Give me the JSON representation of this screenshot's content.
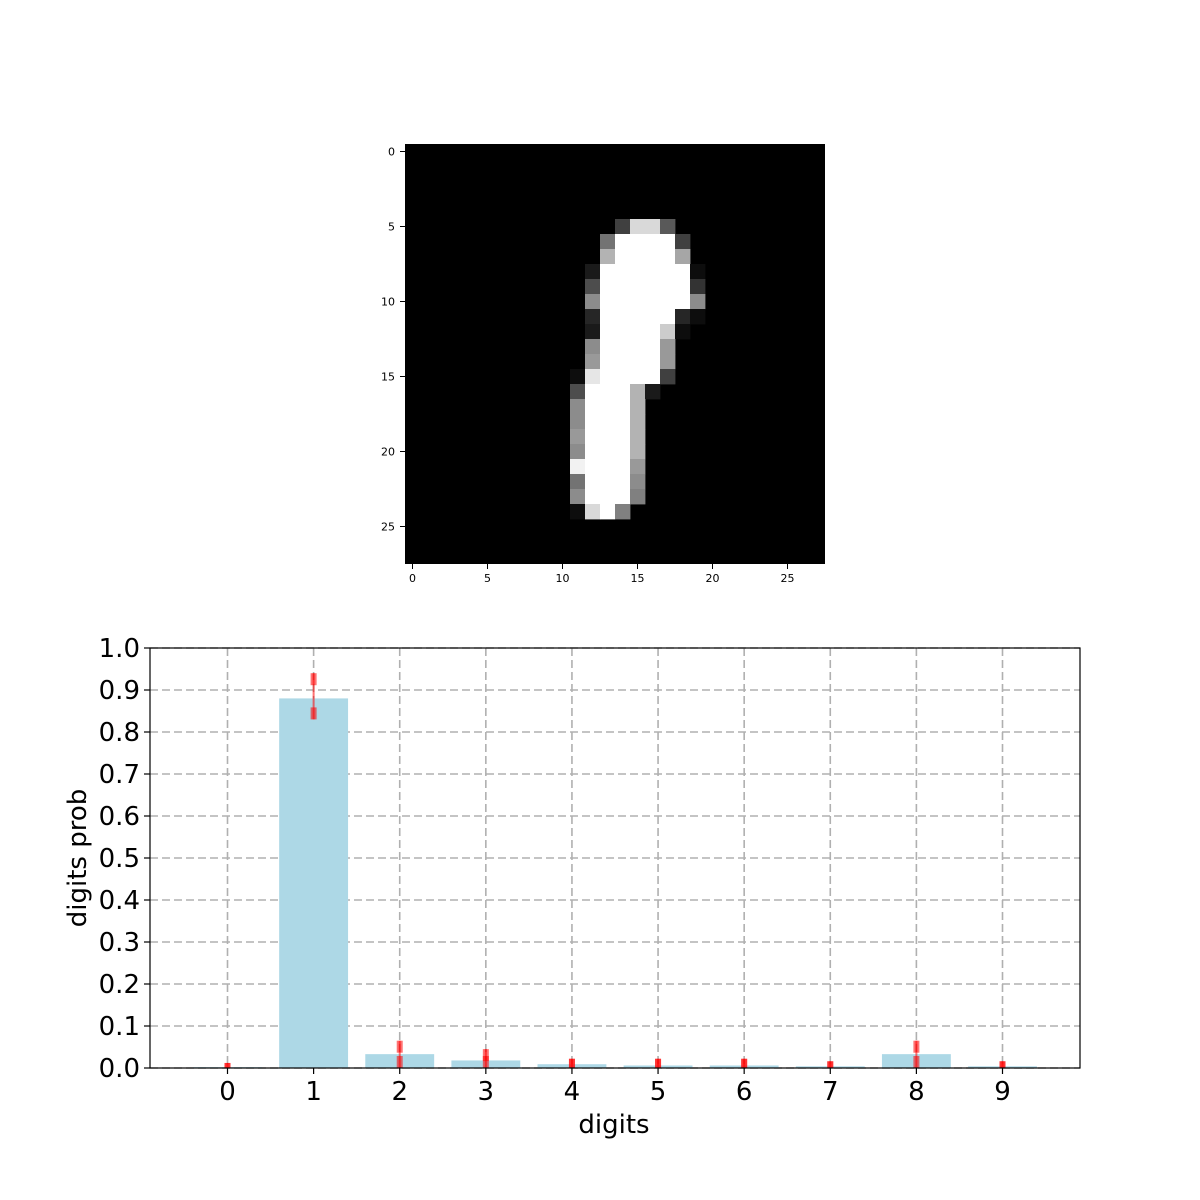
{
  "image_panel": {
    "type": "heatmap",
    "colormap": "gray",
    "size": [
      28,
      28
    ],
    "x_ticks": [
      "0",
      "5",
      "10",
      "15",
      "20",
      "25"
    ],
    "y_ticks": [
      "0",
      "5",
      "10",
      "15",
      "20",
      "25"
    ],
    "pixels": [
      [
        5,
        14,
        0.25
      ],
      [
        5,
        15,
        0.85
      ],
      [
        5,
        16,
        0.85
      ],
      [
        5,
        17,
        0.35
      ],
      [
        6,
        13,
        0.45
      ],
      [
        6,
        14,
        1.0
      ],
      [
        6,
        15,
        1.0
      ],
      [
        6,
        16,
        1.0
      ],
      [
        6,
        17,
        1.0
      ],
      [
        6,
        18,
        0.25
      ],
      [
        7,
        13,
        0.7
      ],
      [
        7,
        14,
        1.0
      ],
      [
        7,
        15,
        1.0
      ],
      [
        7,
        16,
        1.0
      ],
      [
        7,
        17,
        1.0
      ],
      [
        7,
        18,
        0.65
      ],
      [
        8,
        12,
        0.1
      ],
      [
        8,
        13,
        1.0
      ],
      [
        8,
        14,
        1.0
      ],
      [
        8,
        15,
        1.0
      ],
      [
        8,
        16,
        1.0
      ],
      [
        8,
        17,
        1.0
      ],
      [
        8,
        18,
        1.0
      ],
      [
        8,
        19,
        0.05
      ],
      [
        9,
        12,
        0.3
      ],
      [
        9,
        13,
        1.0
      ],
      [
        9,
        14,
        1.0
      ],
      [
        9,
        15,
        1.0
      ],
      [
        9,
        16,
        1.0
      ],
      [
        9,
        17,
        1.0
      ],
      [
        9,
        18,
        1.0
      ],
      [
        9,
        19,
        0.2
      ],
      [
        10,
        12,
        0.55
      ],
      [
        10,
        13,
        1.0
      ],
      [
        10,
        14,
        1.0
      ],
      [
        10,
        15,
        1.0
      ],
      [
        10,
        16,
        1.0
      ],
      [
        10,
        17,
        1.0
      ],
      [
        10,
        18,
        1.0
      ],
      [
        10,
        19,
        0.55
      ],
      [
        11,
        12,
        0.15
      ],
      [
        11,
        13,
        1.0
      ],
      [
        11,
        14,
        1.0
      ],
      [
        11,
        15,
        1.0
      ],
      [
        11,
        16,
        1.0
      ],
      [
        11,
        17,
        1.0
      ],
      [
        11,
        18,
        0.15
      ],
      [
        11,
        19,
        0.05
      ],
      [
        12,
        12,
        0.1
      ],
      [
        12,
        13,
        1.0
      ],
      [
        12,
        14,
        1.0
      ],
      [
        12,
        15,
        1.0
      ],
      [
        12,
        16,
        1.0
      ],
      [
        12,
        17,
        0.8
      ],
      [
        12,
        18,
        0.05
      ],
      [
        13,
        12,
        0.55
      ],
      [
        13,
        13,
        1.0
      ],
      [
        13,
        14,
        1.0
      ],
      [
        13,
        15,
        1.0
      ],
      [
        13,
        16,
        1.0
      ],
      [
        13,
        17,
        0.6
      ],
      [
        14,
        12,
        0.6
      ],
      [
        14,
        13,
        1.0
      ],
      [
        14,
        14,
        1.0
      ],
      [
        14,
        15,
        1.0
      ],
      [
        14,
        16,
        1.0
      ],
      [
        14,
        17,
        0.6
      ],
      [
        15,
        11,
        0.05
      ],
      [
        15,
        12,
        0.9
      ],
      [
        15,
        13,
        1.0
      ],
      [
        15,
        14,
        1.0
      ],
      [
        15,
        15,
        1.0
      ],
      [
        15,
        16,
        1.0
      ],
      [
        15,
        17,
        0.25
      ],
      [
        16,
        11,
        0.3
      ],
      [
        16,
        12,
        1.0
      ],
      [
        16,
        13,
        1.0
      ],
      [
        16,
        14,
        1.0
      ],
      [
        16,
        15,
        0.7
      ],
      [
        16,
        16,
        0.1
      ],
      [
        17,
        11,
        0.55
      ],
      [
        17,
        12,
        1.0
      ],
      [
        17,
        13,
        1.0
      ],
      [
        17,
        14,
        1.0
      ],
      [
        17,
        15,
        0.7
      ],
      [
        18,
        11,
        0.55
      ],
      [
        18,
        12,
        1.0
      ],
      [
        18,
        13,
        1.0
      ],
      [
        18,
        14,
        1.0
      ],
      [
        18,
        15,
        0.7
      ],
      [
        19,
        11,
        0.6
      ],
      [
        19,
        12,
        1.0
      ],
      [
        19,
        13,
        1.0
      ],
      [
        19,
        14,
        1.0
      ],
      [
        19,
        15,
        0.7
      ],
      [
        20,
        11,
        0.55
      ],
      [
        20,
        12,
        1.0
      ],
      [
        20,
        13,
        1.0
      ],
      [
        20,
        14,
        1.0
      ],
      [
        20,
        15,
        0.7
      ],
      [
        21,
        11,
        0.95
      ],
      [
        21,
        12,
        1.0
      ],
      [
        21,
        13,
        1.0
      ],
      [
        21,
        14,
        1.0
      ],
      [
        21,
        15,
        0.6
      ],
      [
        22,
        11,
        0.45
      ],
      [
        22,
        12,
        1.0
      ],
      [
        22,
        13,
        1.0
      ],
      [
        22,
        14,
        1.0
      ],
      [
        22,
        15,
        0.55
      ],
      [
        23,
        11,
        0.55
      ],
      [
        23,
        12,
        1.0
      ],
      [
        23,
        13,
        1.0
      ],
      [
        23,
        14,
        1.0
      ],
      [
        23,
        15,
        0.5
      ],
      [
        24,
        11,
        0.05
      ],
      [
        24,
        12,
        0.85
      ],
      [
        24,
        13,
        1.0
      ],
      [
        24,
        14,
        0.5
      ]
    ]
  },
  "chart_data": {
    "type": "bar",
    "categories": [
      "0",
      "1",
      "2",
      "3",
      "4",
      "5",
      "6",
      "7",
      "8",
      "9"
    ],
    "values": [
      0.002,
      0.88,
      0.033,
      0.018,
      0.009,
      0.006,
      0.006,
      0.004,
      0.033,
      0.004
    ],
    "error_marks": [
      [
        0.0,
        0.012
      ],
      [
        0.83,
        0.94
      ],
      [
        0.0,
        0.065
      ],
      [
        0.0,
        0.045
      ],
      [
        0.0,
        0.022
      ],
      [
        0.0,
        0.022
      ],
      [
        0.0,
        0.022
      ],
      [
        0.0,
        0.016
      ],
      [
        0.0,
        0.065
      ],
      [
        0.0,
        0.016
      ]
    ],
    "xlabel": "digits",
    "ylabel": "digits prob",
    "ylim": [
      0,
      1
    ],
    "y_ticks": [
      "0.0",
      "0.1",
      "0.2",
      "0.3",
      "0.4",
      "0.5",
      "0.6",
      "0.7",
      "0.8",
      "0.9",
      "1.0"
    ],
    "grid": true,
    "colors": {
      "bar": "#add8e6",
      "error": "#ff0000",
      "grid": "#b0b0b0"
    }
  }
}
